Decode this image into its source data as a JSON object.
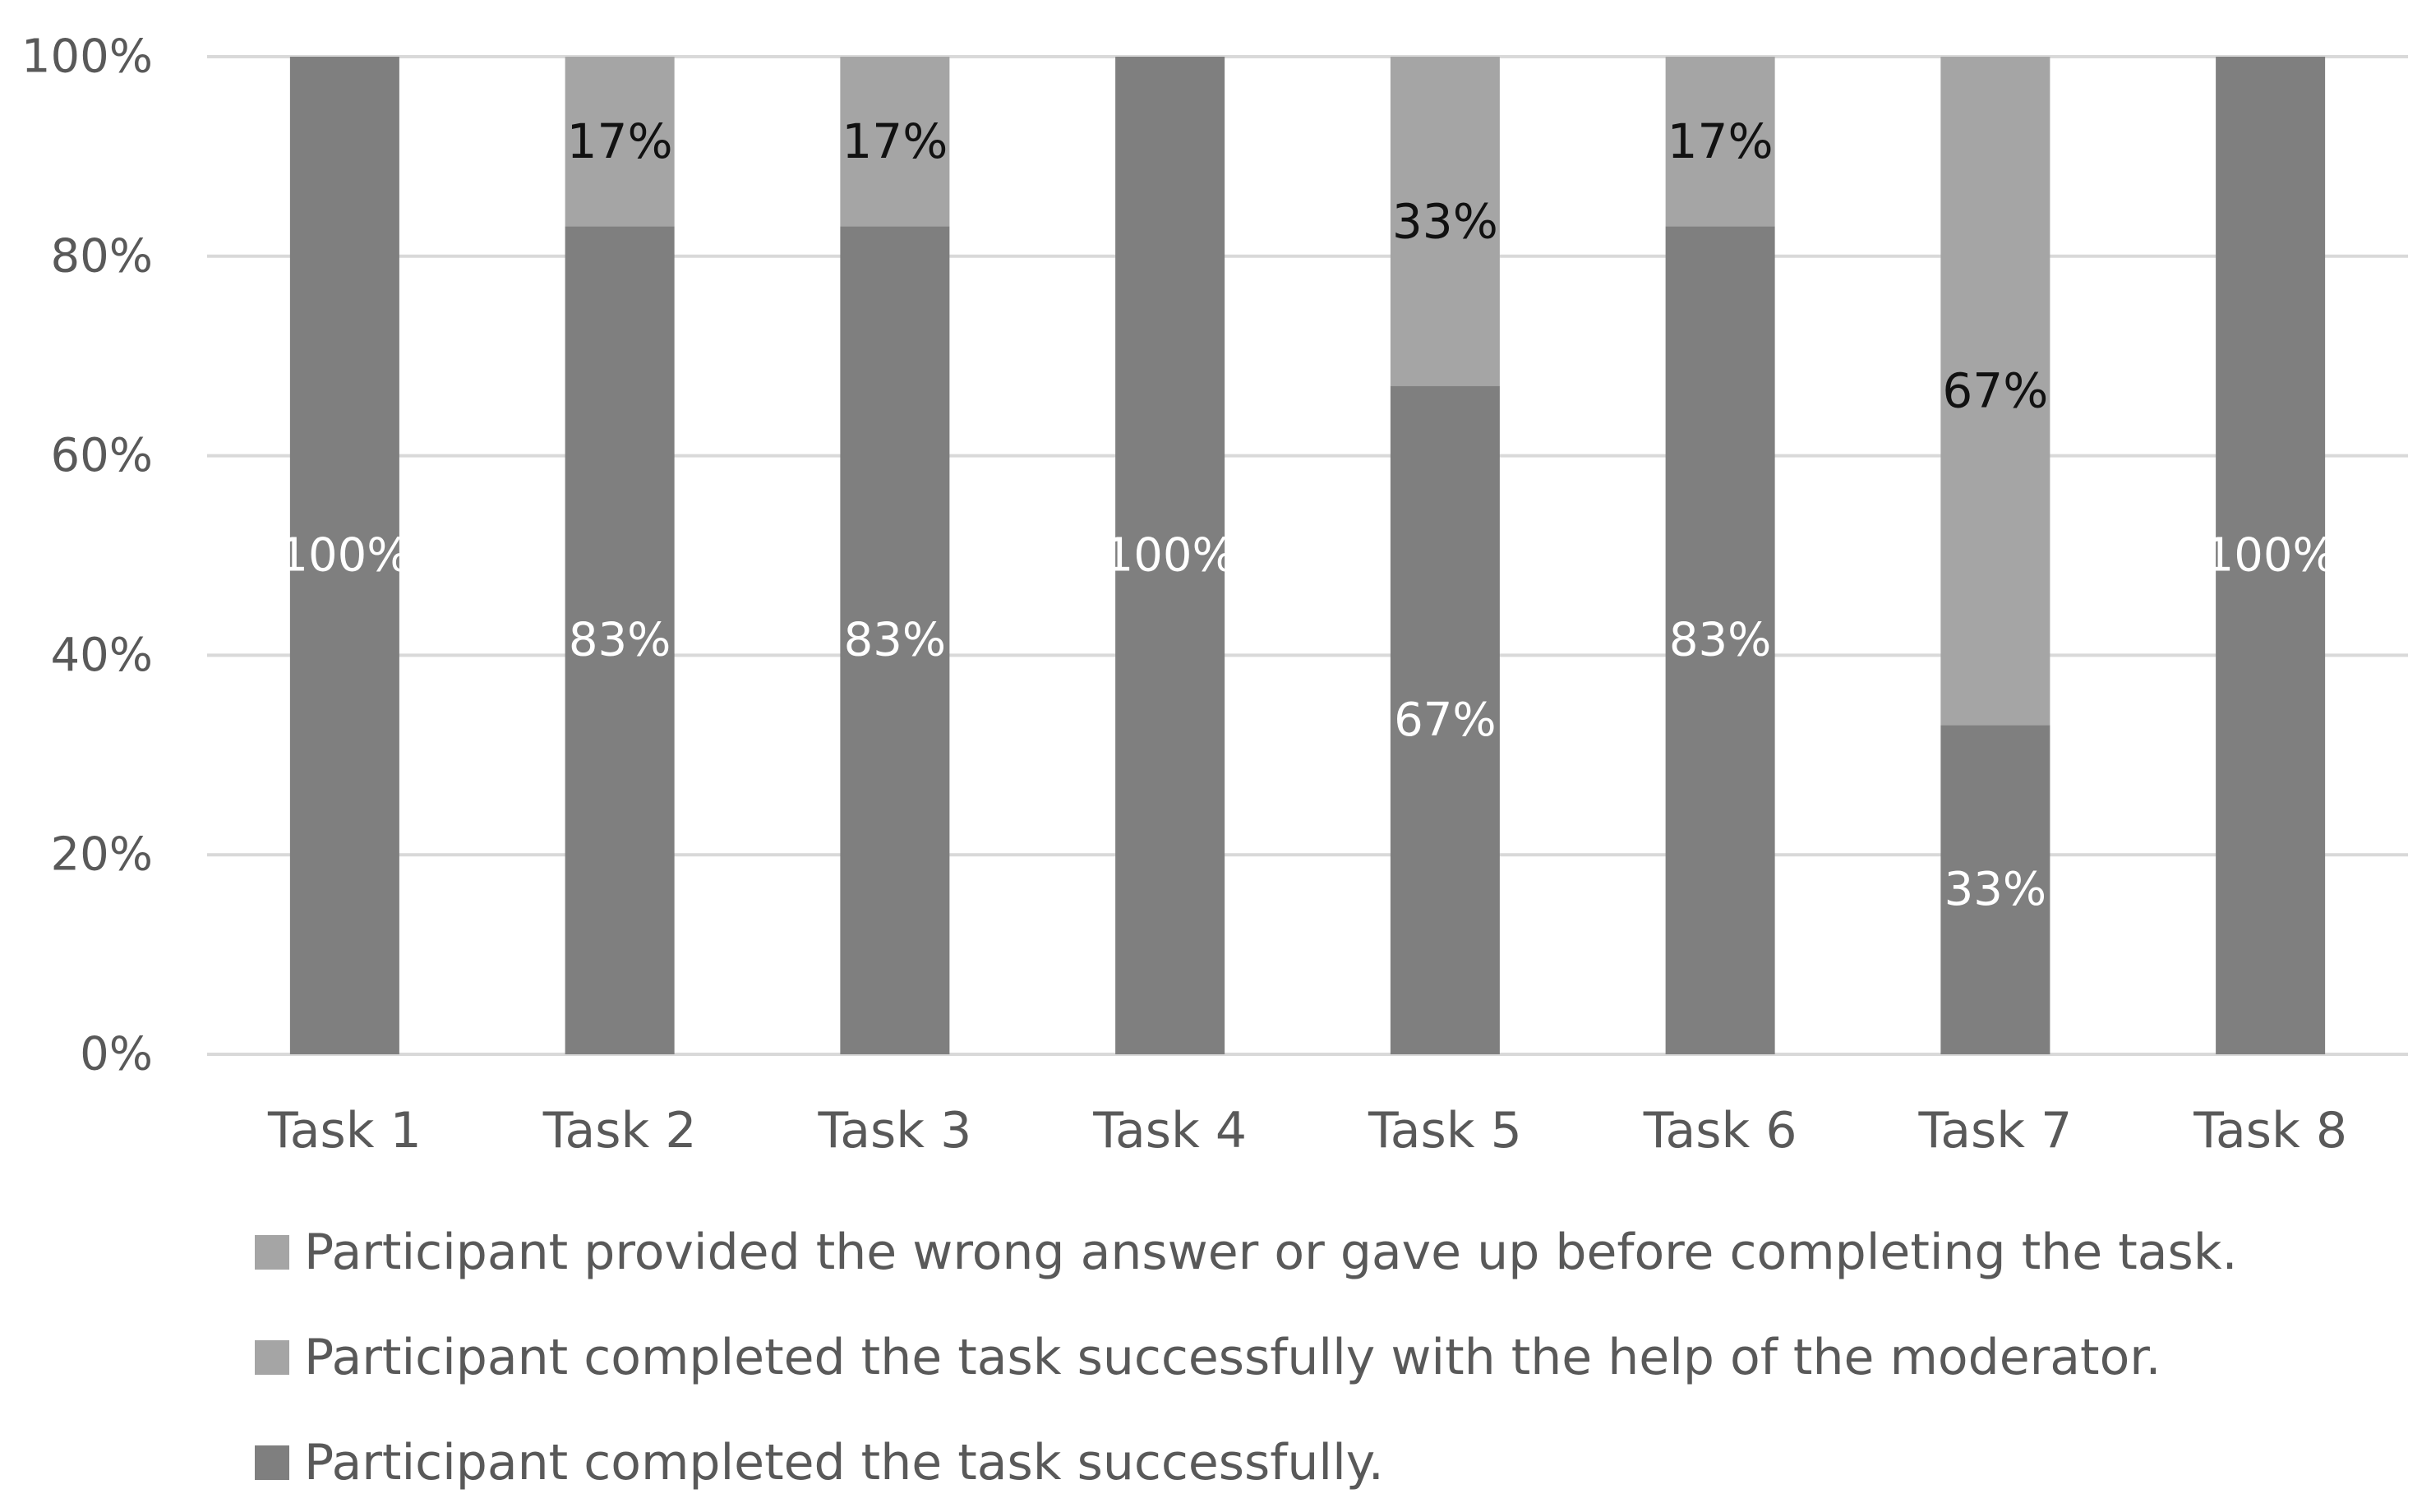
{
  "chart_data": {
    "type": "bar",
    "stacked": true,
    "categories": [
      "Task 1",
      "Task 2",
      "Task 3",
      "Task 4",
      "Task 5",
      "Task 6",
      "Task 7",
      "Task 8"
    ],
    "series": [
      {
        "name": "Participant completed the task successfully.",
        "values": [
          100,
          83,
          83,
          100,
          67,
          83,
          33,
          100
        ],
        "labels": [
          "100%",
          "83%",
          "83%",
          "100%",
          "67%",
          "83%",
          "33%",
          "100%"
        ],
        "color": "#7f7f7f"
      },
      {
        "name": "Participant completed the task successfully with the help of the moderator.",
        "values": [
          0,
          17,
          17,
          0,
          33,
          17,
          67,
          0
        ],
        "labels": [
          "",
          "17%",
          "17%",
          "",
          "33%",
          "17%",
          "67%",
          ""
        ],
        "color": "#a5a5a5"
      },
      {
        "name": "Participant provided the wrong answer or gave up before completing the task.",
        "values": [
          0,
          0,
          0,
          0,
          0,
          0,
          0,
          0
        ],
        "labels": [
          "",
          "",
          "",
          "",
          "",
          "",
          "",
          ""
        ],
        "color": "#a5a5a5"
      }
    ],
    "yticks": [
      "0%",
      "20%",
      "40%",
      "60%",
      "80%",
      "100%"
    ],
    "ylim": [
      0,
      100
    ],
    "grid": true,
    "legend_position": "bottom"
  }
}
